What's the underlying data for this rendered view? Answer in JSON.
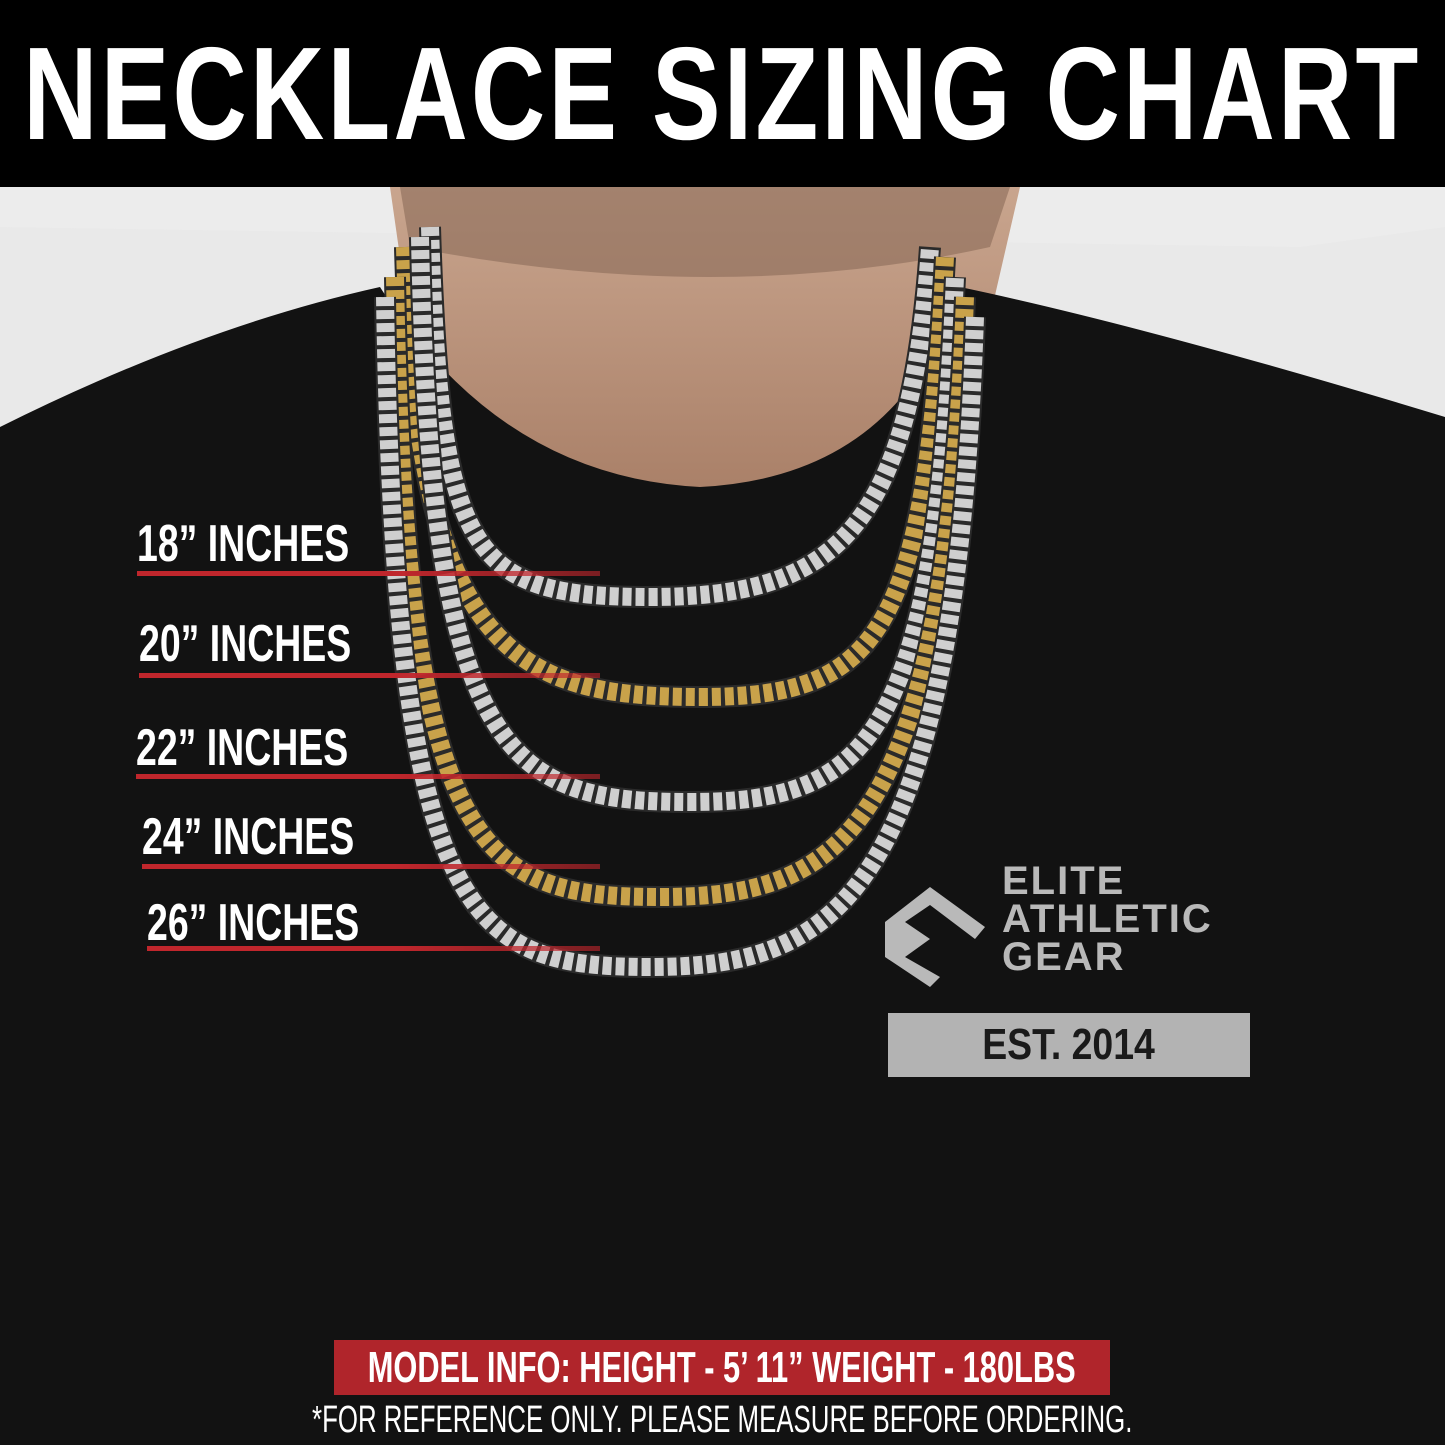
{
  "header": {
    "title": "NECKLACE SIZING CHART"
  },
  "sizes": [
    {
      "label": "18” INCHES",
      "chain_color": "silver"
    },
    {
      "label": "20” INCHES",
      "chain_color": "gold"
    },
    {
      "label": "22” INCHES",
      "chain_color": "silver"
    },
    {
      "label": "24” INCHES",
      "chain_color": "gold"
    },
    {
      "label": "26” INCHES",
      "chain_color": "silver"
    }
  ],
  "logo": {
    "lines": [
      "ELITE",
      "ATHLETIC",
      "GEAR"
    ],
    "est": "EST. 2014"
  },
  "footer": {
    "model_info": "MODEL INFO: HEIGHT - 5’ 11”  WEIGHT - 180LBS",
    "disclaimer": "*FOR REFERENCE ONLY. PLEASE MEASURE BEFORE ORDERING."
  },
  "colors": {
    "accent_red": "#b0252b",
    "header_bg": "#000000",
    "shirt": "#111111",
    "silver": "#cfcfcf",
    "gold": "#c9a24a"
  }
}
